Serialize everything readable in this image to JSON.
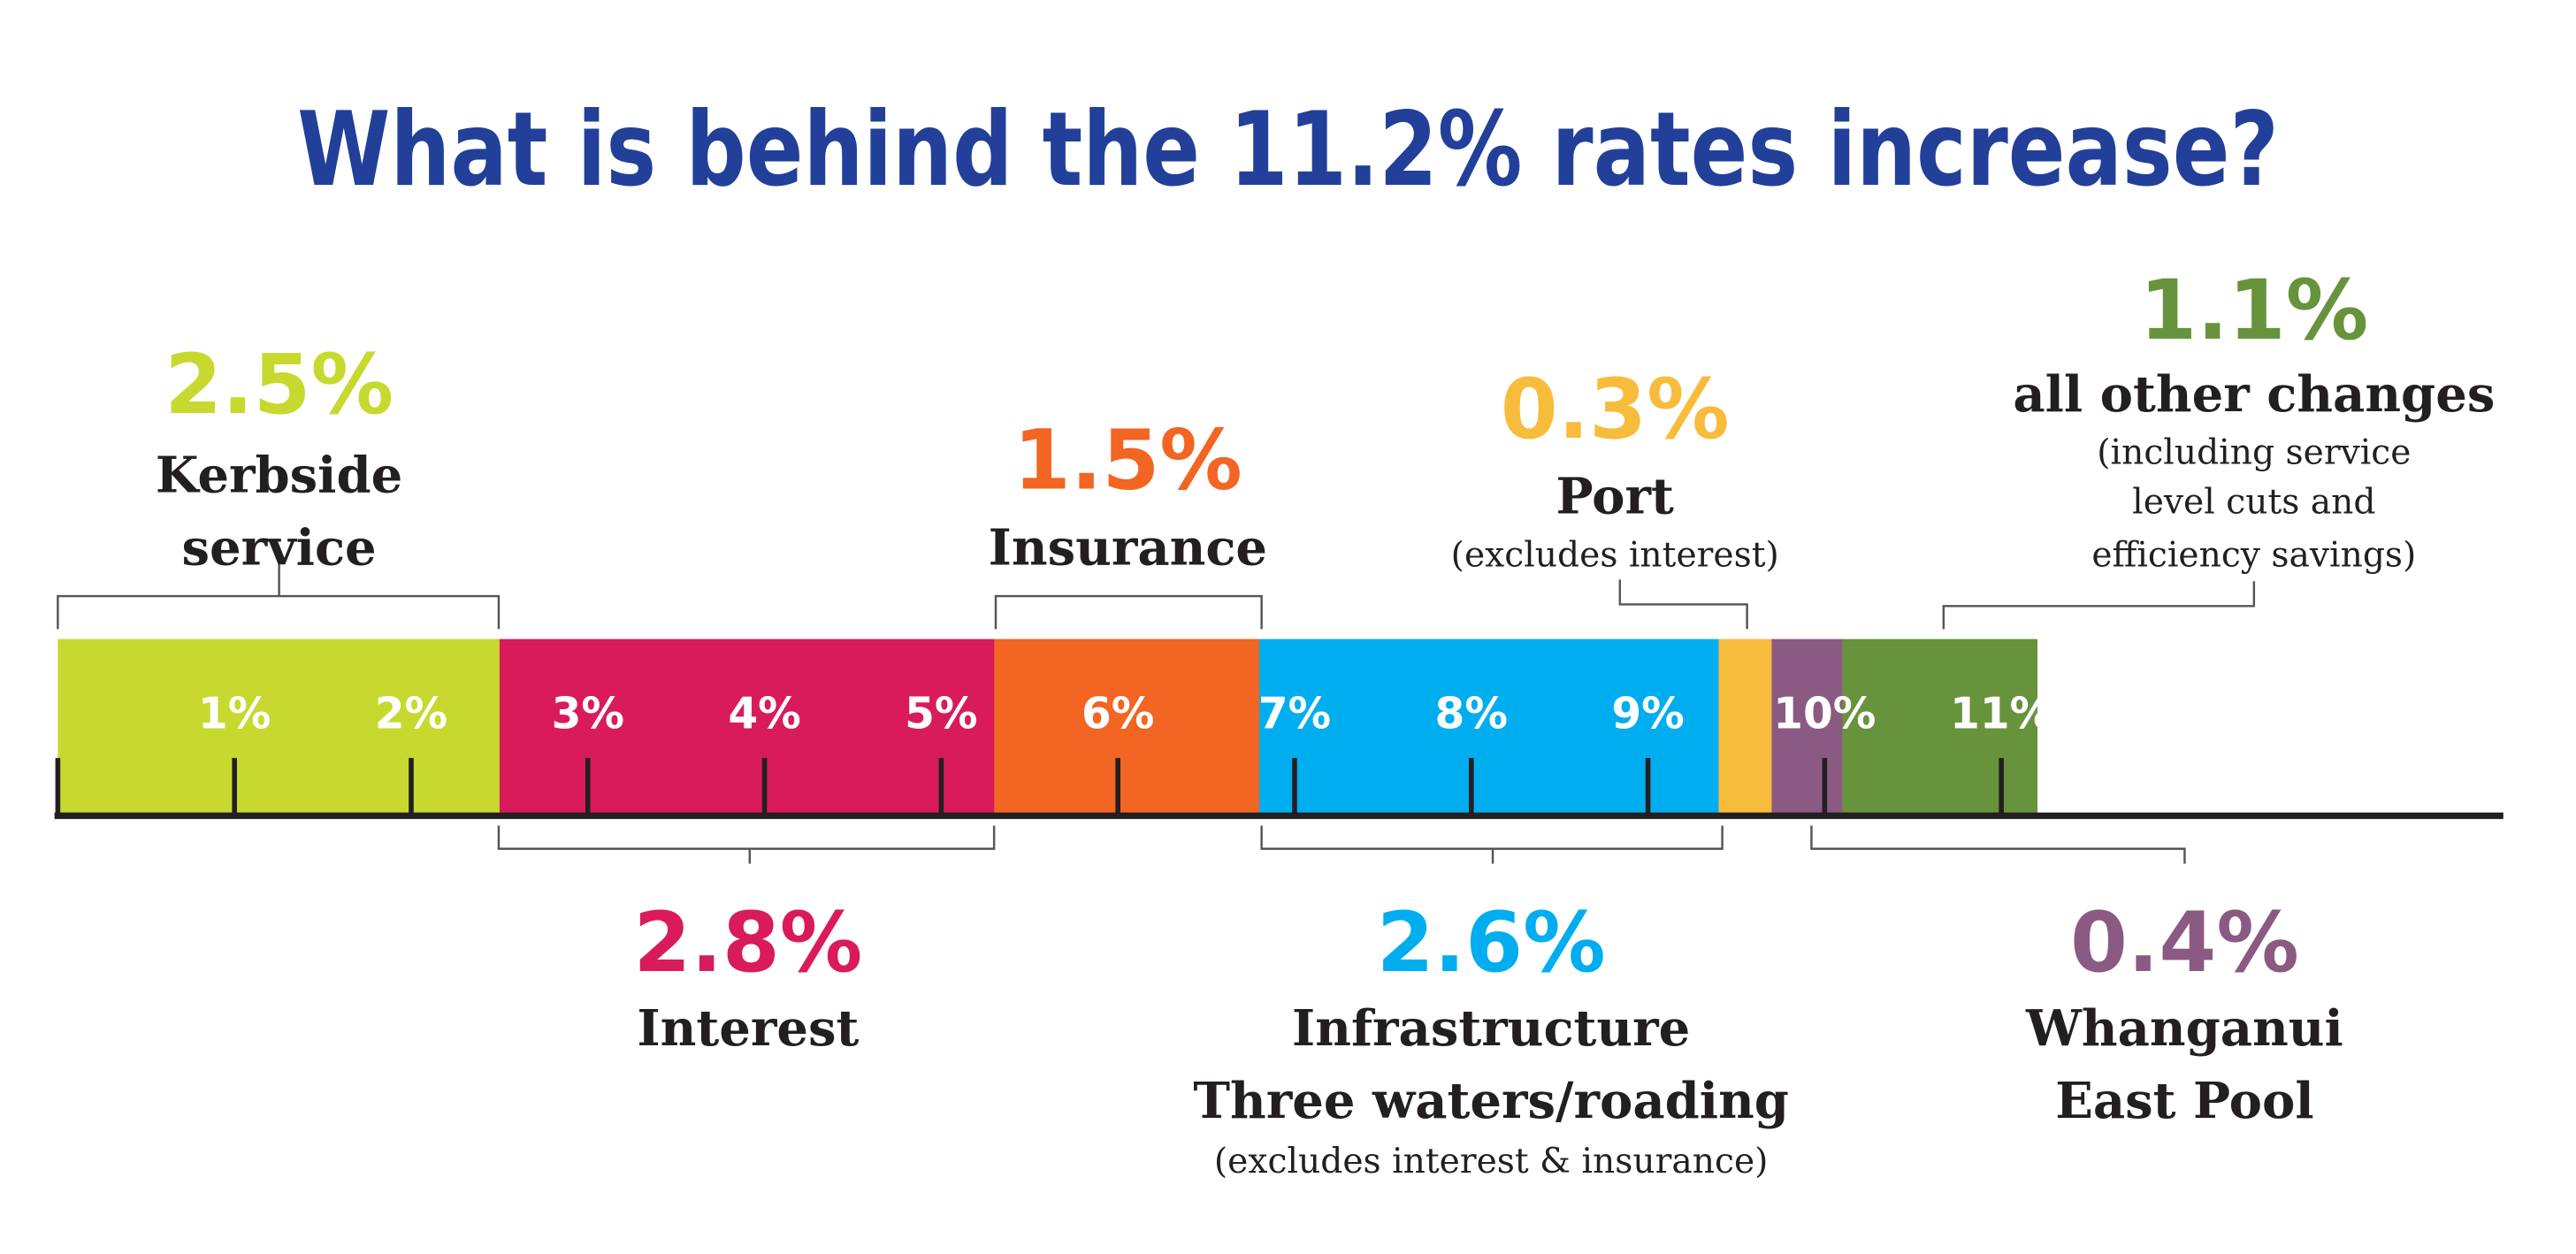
{
  "chart_data": {
    "type": "bar",
    "subtype": "stacked-horizontal",
    "title": "What is behind the 11.2% rates increase?",
    "xlim": [
      0,
      11.2
    ],
    "tick_labels": [
      "1%",
      "2%",
      "3%",
      "4%",
      "5%",
      "6%",
      "7%",
      "8%",
      "9%",
      "10%",
      "11%"
    ],
    "tick_values": [
      0,
      1,
      2,
      3,
      4,
      5,
      6,
      7,
      8,
      9,
      10,
      11
    ],
    "segments": [
      {
        "name": "Kerbside service",
        "value": 2.5,
        "value_label": "2.5%",
        "lines": [
          "Kerbside",
          "service"
        ],
        "sub": [],
        "color": "#c7d92f"
      },
      {
        "name": "Interest",
        "value": 2.8,
        "value_label": "2.8%",
        "lines": [
          "Interest"
        ],
        "sub": [],
        "color": "#d91b5b"
      },
      {
        "name": "Insurance",
        "value": 1.5,
        "value_label": "1.5%",
        "lines": [
          "Insurance"
        ],
        "sub": [],
        "color": "#f26522"
      },
      {
        "name": "Infrastructure",
        "value": 2.6,
        "value_label": "2.6%",
        "lines": [
          "Infrastructure",
          "Three waters/roading"
        ],
        "sub": [
          "(excludes interest & insurance)"
        ],
        "color": "#00aeef"
      },
      {
        "name": "Port",
        "value": 0.3,
        "value_label": "0.3%",
        "lines": [
          "Port"
        ],
        "sub": [
          "(excludes interest)"
        ],
        "color": "#f8bc3c"
      },
      {
        "name": "Whanganui East Pool",
        "value": 0.4,
        "value_label": "0.4%",
        "lines": [
          "Whanganui",
          "East Pool"
        ],
        "sub": [],
        "color": "#8b5a83"
      },
      {
        "name": "all other changes",
        "value": 1.1,
        "value_label": "1.1%",
        "lines": [
          "all other changes"
        ],
        "sub": [
          "(including service",
          "level cuts and",
          "efficiency savings)"
        ],
        "color": "#68933d"
      }
    ]
  }
}
